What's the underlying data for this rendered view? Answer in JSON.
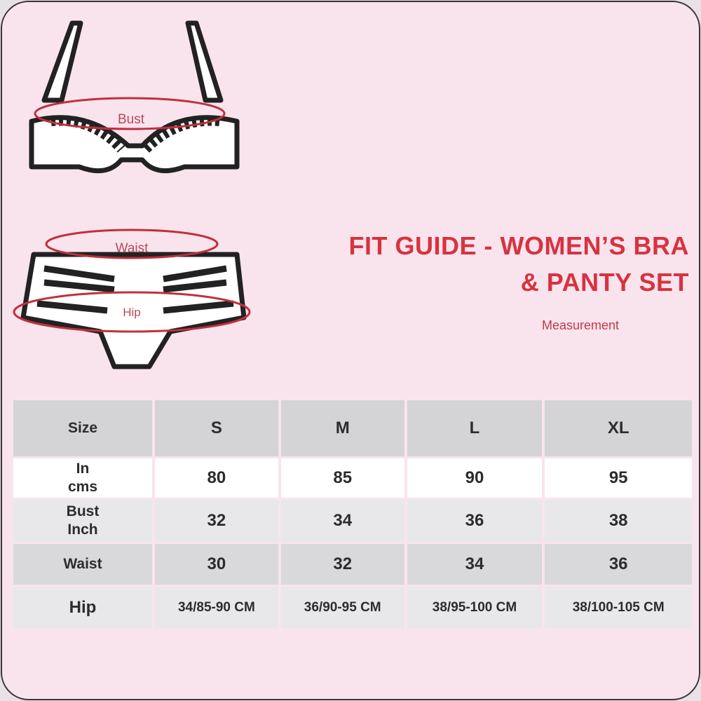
{
  "title_line1": "FIT GUIDE - WOMEN’S BRA",
  "title_line2": "& PANTY SET",
  "subtitle": "Measurement",
  "illustration": {
    "bust_label": "Bust",
    "waist_label": "Waist",
    "hip_label": "Hip"
  },
  "colors": {
    "background": "#f9e4ee",
    "accent": "#d8323f"
  },
  "table": {
    "header": [
      "Size",
      "S",
      "M",
      "L",
      "XL"
    ],
    "rows": [
      {
        "label_line1": "In",
        "label_line2": "cms",
        "values": [
          "80",
          "85",
          "90",
          "95"
        ]
      },
      {
        "label_line1": "Bust",
        "label_line2": "Inch",
        "values": [
          "32",
          "34",
          "36",
          "38"
        ]
      },
      {
        "label_line1": "Waist",
        "label_line2": "",
        "values": [
          "30",
          "32",
          "34",
          "36"
        ]
      },
      {
        "label_line1": "Hip",
        "label_line2": "",
        "values": [
          "34/85-90 CM",
          "36/90-95 CM",
          "38/95-100 CM",
          "38/100-105 CM"
        ]
      }
    ]
  }
}
